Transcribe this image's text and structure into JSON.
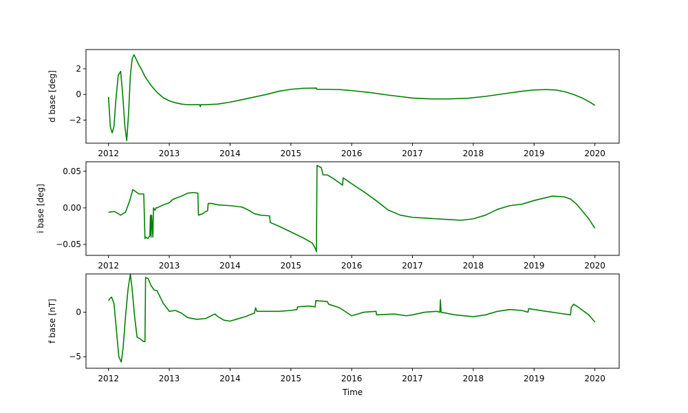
{
  "chart_data": [
    {
      "type": "line",
      "ylabel": "d base [deg]",
      "xlabel": "",
      "xlim": [
        2011.63,
        2020.4
      ],
      "ylim": [
        -3.8,
        3.5
      ],
      "xticks": [
        2012,
        2013,
        2014,
        2015,
        2016,
        2017,
        2018,
        2019,
        2020
      ],
      "xtick_labels": [
        "2012",
        "2013",
        "2014",
        "2015",
        "2016",
        "2017",
        "2018",
        "2019",
        "2020"
      ],
      "yticks": [
        -2,
        0,
        2
      ],
      "ytick_labels": [
        "−2",
        "0",
        "2"
      ],
      "grid": false,
      "color": "#008000",
      "series": [
        {
          "x": [
            2012.0,
            2012.03,
            2012.06,
            2012.09,
            2012.12,
            2012.16,
            2012.2,
            2012.23,
            2012.27,
            2012.3,
            2012.33,
            2012.36,
            2012.39,
            2012.42,
            2012.45,
            2012.5,
            2012.55,
            2012.6,
            2012.7,
            2012.8,
            2012.9,
            2013.0,
            2013.1,
            2013.2,
            2013.3,
            2013.4,
            2013.5,
            2013.51,
            2013.52,
            2013.6,
            2013.8,
            2014.0,
            2014.2,
            2014.4,
            2014.6,
            2014.8,
            2015.0,
            2015.2,
            2015.42,
            2015.43,
            2015.6,
            2015.8,
            2016.0,
            2016.3,
            2016.6,
            2017.0,
            2017.3,
            2017.6,
            2017.9,
            2018.2,
            2018.5,
            2018.8,
            2019.0,
            2019.2,
            2019.35,
            2019.5,
            2019.65,
            2019.8,
            2019.9,
            2020.0
          ],
          "y": [
            -0.2,
            -2.5,
            -3.0,
            -2.5,
            -0.5,
            1.5,
            1.8,
            0.2,
            -2.5,
            -3.6,
            -1.5,
            1.5,
            2.8,
            3.1,
            2.8,
            2.3,
            1.9,
            1.4,
            0.7,
            0.15,
            -0.25,
            -0.5,
            -0.65,
            -0.75,
            -0.8,
            -0.8,
            -0.8,
            -0.95,
            -0.8,
            -0.8,
            -0.75,
            -0.6,
            -0.4,
            -0.2,
            0.0,
            0.25,
            0.4,
            0.48,
            0.5,
            0.4,
            0.4,
            0.38,
            0.3,
            0.15,
            -0.05,
            -0.28,
            -0.35,
            -0.35,
            -0.3,
            -0.15,
            0.05,
            0.25,
            0.35,
            0.38,
            0.35,
            0.22,
            0.0,
            -0.3,
            -0.55,
            -0.85
          ]
        }
      ]
    },
    {
      "type": "line",
      "ylabel": "i base [deg]",
      "xlabel": "",
      "xlim": [
        2011.63,
        2020.4
      ],
      "ylim": [
        -0.065,
        0.063
      ],
      "xticks": [
        2012,
        2013,
        2014,
        2015,
        2016,
        2017,
        2018,
        2019,
        2020
      ],
      "xtick_labels": [
        "2012",
        "2013",
        "2014",
        "2015",
        "2016",
        "2017",
        "2018",
        "2019",
        "2020"
      ],
      "yticks": [
        -0.05,
        0.0,
        0.05
      ],
      "ytick_labels": [
        "−0.05",
        "0.00",
        "0.05"
      ],
      "grid": false,
      "color": "#008000",
      "series": [
        {
          "x": [
            2012.0,
            2012.1,
            2012.2,
            2012.28,
            2012.35,
            2012.4,
            2012.45,
            2012.5,
            2012.58,
            2012.6,
            2012.61,
            2012.65,
            2012.68,
            2012.69,
            2012.7,
            2012.71,
            2012.73,
            2012.74,
            2012.76,
            2012.77,
            2012.78,
            2012.8,
            2012.85,
            2012.9,
            2013.0,
            2013.05,
            2013.1,
            2013.2,
            2013.3,
            2013.4,
            2013.47,
            2013.48,
            2013.55,
            2013.6,
            2013.63,
            2013.64,
            2013.7,
            2013.8,
            2014.0,
            2014.2,
            2014.3,
            2014.4,
            2014.5,
            2014.65,
            2014.66,
            2014.8,
            2015.0,
            2015.2,
            2015.35,
            2015.4,
            2015.42,
            2015.43,
            2015.5,
            2015.53,
            2015.6,
            2015.7,
            2015.85,
            2015.86,
            2016.0,
            2016.2,
            2016.4,
            2016.6,
            2016.8,
            2017.0,
            2017.2,
            2017.4,
            2017.6,
            2017.8,
            2018.0,
            2018.2,
            2018.4,
            2018.6,
            2018.8,
            2019.0,
            2019.2,
            2019.3,
            2019.5,
            2019.6,
            2019.7,
            2019.8,
            2019.9,
            2020.0
          ],
          "y": [
            -0.006,
            -0.005,
            -0.01,
            -0.006,
            0.01,
            0.025,
            0.022,
            0.019,
            0.019,
            -0.042,
            -0.04,
            -0.042,
            -0.038,
            -0.01,
            -0.04,
            -0.01,
            -0.04,
            0.0,
            -0.003,
            -0.003,
            0.0,
            0.0,
            0.002,
            0.004,
            0.007,
            0.011,
            0.013,
            0.016,
            0.02,
            0.021,
            0.02,
            -0.01,
            -0.008,
            -0.005,
            -0.004,
            0.006,
            0.006,
            0.004,
            0.003,
            0.001,
            -0.003,
            -0.008,
            -0.01,
            -0.011,
            -0.02,
            -0.025,
            -0.033,
            -0.041,
            -0.048,
            -0.055,
            -0.06,
            0.058,
            0.055,
            0.045,
            0.045,
            0.04,
            0.031,
            0.041,
            0.033,
            0.022,
            0.01,
            -0.003,
            -0.01,
            -0.013,
            -0.014,
            -0.015,
            -0.016,
            -0.017,
            -0.015,
            -0.01,
            -0.002,
            0.003,
            0.005,
            0.01,
            0.014,
            0.016,
            0.015,
            0.012,
            0.005,
            -0.005,
            -0.015,
            -0.028
          ]
        }
      ]
    },
    {
      "type": "line",
      "ylabel": "f base [nT]",
      "xlabel": "Time",
      "xlim": [
        2011.63,
        2020.4
      ],
      "ylim": [
        -6.3,
        4.3
      ],
      "xticks": [
        2012,
        2013,
        2014,
        2015,
        2016,
        2017,
        2018,
        2019,
        2020
      ],
      "xtick_labels": [
        "2012",
        "2013",
        "2014",
        "2015",
        "2016",
        "2017",
        "2018",
        "2019",
        "2020"
      ],
      "yticks": [
        -5,
        0
      ],
      "ytick_labels": [
        "−5",
        "0"
      ],
      "grid": false,
      "color": "#008000",
      "series": [
        {
          "x": [
            2012.0,
            2012.02,
            2012.05,
            2012.09,
            2012.13,
            2012.17,
            2012.21,
            2012.24,
            2012.28,
            2012.32,
            2012.36,
            2012.39,
            2012.43,
            2012.47,
            2012.52,
            2012.58,
            2012.6,
            2012.61,
            2012.65,
            2012.7,
            2012.75,
            2012.8,
            2012.9,
            2013.0,
            2013.1,
            2013.2,
            2013.3,
            2013.45,
            2013.6,
            2013.75,
            2013.8,
            2013.9,
            2014.0,
            2014.1,
            2014.25,
            2014.4,
            2014.42,
            2014.44,
            2014.6,
            2014.8,
            2015.0,
            2015.1,
            2015.11,
            2015.3,
            2015.4,
            2015.41,
            2015.6,
            2015.62,
            2015.8,
            2016.0,
            2016.2,
            2016.4,
            2016.41,
            2016.7,
            2016.9,
            2017.0,
            2017.2,
            2017.4,
            2017.45,
            2017.46,
            2017.47,
            2017.7,
            2018.0,
            2018.2,
            2018.4,
            2018.6,
            2018.8,
            2018.9,
            2018.91,
            2019.2,
            2019.4,
            2019.6,
            2019.61,
            2019.65,
            2019.7,
            2019.8,
            2019.9,
            2020.0
          ],
          "y": [
            1.3,
            1.5,
            1.7,
            1.0,
            -2.0,
            -5.0,
            -5.6,
            -4.0,
            -0.5,
            2.5,
            4.3,
            2.5,
            -0.5,
            -2.8,
            -3.0,
            -3.3,
            -3.3,
            3.9,
            3.8,
            3.0,
            2.5,
            2.4,
            1.0,
            0.1,
            0.2,
            -0.1,
            -0.6,
            -0.8,
            -0.7,
            -0.2,
            -0.5,
            -0.9,
            -1.0,
            -0.8,
            -0.5,
            -0.1,
            0.5,
            0.1,
            0.1,
            0.1,
            0.2,
            0.3,
            0.6,
            0.7,
            0.6,
            1.3,
            1.2,
            0.9,
            0.5,
            -0.4,
            0.0,
            0.1,
            -0.3,
            -0.2,
            -0.4,
            -0.3,
            0.0,
            0.1,
            0.0,
            1.4,
            0.0,
            -0.3,
            -0.5,
            -0.3,
            0.1,
            0.3,
            0.2,
            0.0,
            0.4,
            0.1,
            -0.1,
            -0.3,
            0.5,
            0.9,
            0.7,
            0.2,
            -0.3,
            -1.1
          ]
        }
      ]
    }
  ]
}
